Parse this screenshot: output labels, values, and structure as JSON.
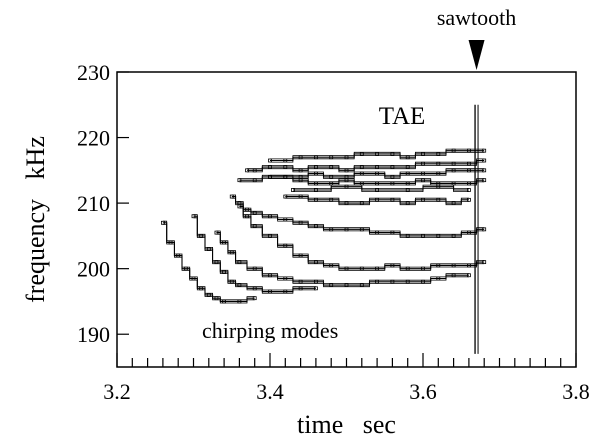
{
  "chart_data": {
    "type": "scatter",
    "title": "",
    "xlabel": "time   sec",
    "ylabel": "frequency   kHz",
    "xlim": [
      3.2,
      3.8
    ],
    "ylim": [
      185,
      230
    ],
    "xticks": [
      3.2,
      3.4,
      3.6,
      3.8
    ],
    "xtick_labels": [
      "3.2",
      "3.4",
      "3.6",
      "3.8"
    ],
    "yticks": [
      190,
      200,
      210,
      220,
      230
    ],
    "ytick_labels": [
      "190",
      "200",
      "210",
      "220",
      "230"
    ],
    "x_minor_step": 0.02,
    "grid": false,
    "color": "#000000",
    "annotations": [
      {
        "text": "TAE",
        "x": 3.6,
        "y": 222
      },
      {
        "text": "chirping modes",
        "x": 3.25,
        "y": 189
      },
      {
        "text": "sawtooth",
        "x": 3.67,
        "y": 230
      }
    ],
    "sawtooth_time": 3.67,
    "sawtooth_freq_range": [
      187,
      225
    ],
    "series": [
      {
        "x": [
          3.26,
          3.27,
          3.28,
          3.29,
          3.3,
          3.31,
          3.32,
          3.33,
          3.34,
          3.36,
          3.38
        ],
        "y": [
          207,
          204,
          202,
          200,
          198.5,
          197,
          196,
          195.5,
          195,
          195,
          195.5
        ]
      },
      {
        "x": [
          3.3,
          3.31,
          3.32,
          3.33,
          3.34,
          3.35,
          3.36,
          3.38,
          3.4,
          3.42,
          3.44,
          3.46
        ],
        "y": [
          208,
          205,
          203,
          201,
          199.5,
          198,
          197.5,
          197,
          196.5,
          196.5,
          197,
          197
        ]
      },
      {
        "x": [
          3.33,
          3.34,
          3.35,
          3.36,
          3.38,
          3.4,
          3.42,
          3.44,
          3.46,
          3.48,
          3.5,
          3.52,
          3.54,
          3.56,
          3.58,
          3.6,
          3.62,
          3.64,
          3.66
        ],
        "y": [
          205.5,
          204,
          202.5,
          201,
          200,
          199,
          198.5,
          198,
          198,
          197.5,
          197.5,
          197.5,
          198,
          198,
          198,
          198,
          198.5,
          199,
          199
        ]
      },
      {
        "x": [
          3.36,
          3.37,
          3.38,
          3.4,
          3.42,
          3.44,
          3.46,
          3.48,
          3.5,
          3.52,
          3.54,
          3.56,
          3.58,
          3.6,
          3.62,
          3.64,
          3.66,
          3.68
        ],
        "y": [
          209.5,
          208,
          206.5,
          205,
          203.5,
          202,
          201,
          200.5,
          200,
          200,
          200,
          200.5,
          200,
          200,
          200.5,
          200.5,
          200.5,
          201
        ]
      },
      {
        "x": [
          3.35,
          3.36,
          3.37,
          3.38,
          3.4,
          3.42,
          3.44,
          3.46,
          3.48,
          3.5,
          3.52,
          3.54,
          3.56,
          3.58,
          3.6,
          3.62,
          3.64,
          3.66,
          3.68
        ],
        "y": [
          211,
          210,
          209,
          208.5,
          208,
          207.5,
          207,
          206.5,
          206,
          206,
          206,
          205.5,
          205.5,
          205,
          205,
          205,
          205,
          205.5,
          206
        ]
      },
      {
        "x": [
          3.42,
          3.44,
          3.46,
          3.48,
          3.5,
          3.52,
          3.54,
          3.56,
          3.58,
          3.6,
          3.62,
          3.64,
          3.66
        ],
        "y": [
          211,
          211,
          210.5,
          210.5,
          210,
          210,
          210.5,
          210.5,
          210,
          210.5,
          210.5,
          210,
          210.5
        ]
      },
      {
        "x": [
          3.4,
          3.42,
          3.44,
          3.46,
          3.48,
          3.5,
          3.52,
          3.54,
          3.56,
          3.58,
          3.6,
          3.62,
          3.64,
          3.66,
          3.68
        ],
        "y": [
          214,
          214,
          213.5,
          213,
          213,
          213.5,
          213,
          213,
          213,
          213,
          213.5,
          213,
          213,
          213,
          213.5
        ]
      },
      {
        "x": [
          3.37,
          3.38,
          3.4,
          3.42,
          3.44,
          3.46,
          3.48,
          3.5,
          3.52,
          3.54,
          3.56,
          3.58,
          3.6,
          3.62,
          3.64,
          3.66,
          3.68
        ],
        "y": [
          215,
          215,
          215.5,
          215.5,
          215,
          215.5,
          215.5,
          215,
          215.5,
          215.5,
          215.5,
          215.5,
          216,
          216,
          216,
          216,
          216.5
        ]
      },
      {
        "x": [
          3.4,
          3.42,
          3.44,
          3.46,
          3.48,
          3.5,
          3.52,
          3.54,
          3.56,
          3.58,
          3.6,
          3.62,
          3.64,
          3.66,
          3.68
        ],
        "y": [
          216.5,
          216.5,
          217,
          217,
          217,
          217,
          217.5,
          217.5,
          217.5,
          217,
          217.5,
          217.5,
          218,
          218,
          218
        ]
      },
      {
        "x": [
          3.36,
          3.38,
          3.4,
          3.42,
          3.44,
          3.46,
          3.48,
          3.5,
          3.52,
          3.54,
          3.56,
          3.58,
          3.6,
          3.62,
          3.64,
          3.66,
          3.68
        ],
        "y": [
          213.5,
          213.5,
          214,
          214,
          214,
          214.5,
          214,
          214,
          214.5,
          214.5,
          214,
          214.5,
          214.5,
          214.5,
          215,
          215,
          215
        ]
      },
      {
        "x": [
          3.43,
          3.46,
          3.5,
          3.54,
          3.58,
          3.62,
          3.66
        ],
        "y": [
          212,
          212,
          212.5,
          212,
          212,
          212.5,
          212
        ]
      }
    ]
  }
}
